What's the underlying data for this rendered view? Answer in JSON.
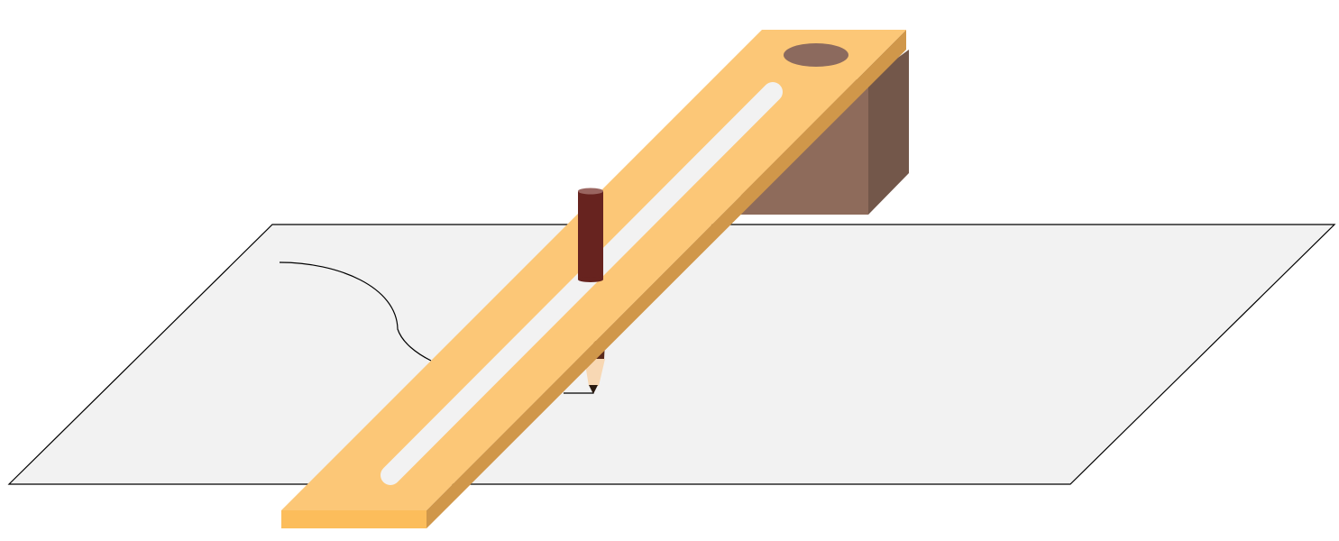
{
  "diagram": {
    "subject": "slotted-arm-drawing-device",
    "components": [
      {
        "id": "paper",
        "icon": "paper-sheet"
      },
      {
        "id": "traced-curve",
        "icon": "curve"
      },
      {
        "id": "support-block",
        "icon": "block"
      },
      {
        "id": "slotted-arm",
        "icon": "ruler-with-slot"
      },
      {
        "id": "pivot-hole",
        "icon": "hole"
      },
      {
        "id": "guide-peg",
        "icon": "peg"
      },
      {
        "id": "pencil",
        "icon": "pencil"
      }
    ],
    "colors": {
      "background": "#ffffff",
      "paper": "#f2f2f2",
      "paper_outline": "#000000",
      "arm_top": "#fcc777",
      "arm_side": "#d0974a",
      "arm_end": "#fcbd5b",
      "slot": "#f2f2f2",
      "block_front": "#8e6b5b",
      "block_side": "#73574a",
      "pivot_hole": "#8c6a5e",
      "peg": "#67231f",
      "peg_top": "#9a6560",
      "pencil_wood": "#f8d8b4",
      "pencil_lead": "#2a1a10",
      "pencil_body": "#5a2a1c"
    }
  }
}
